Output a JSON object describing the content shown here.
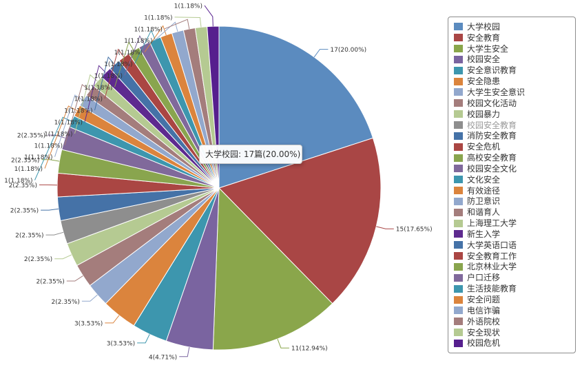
{
  "chart_data": {
    "type": "pie",
    "categories": [
      "大学校园",
      "安全教育",
      "大学生安全",
      "校园安全",
      "安全意识教育",
      "安全隐患",
      "大学生安全意识",
      "校园文化活动",
      "校园暴力",
      "校园安全教育",
      "消防安全教育",
      "安全危机",
      "高校安全教育",
      "校园安全文化",
      "文化安全",
      "有效途径",
      "防卫意识",
      "和谐育人",
      "上海理工大学",
      "新生入学",
      "大学英语口语",
      "安全教育工作",
      "北京林业大学",
      "户口迁移",
      "生活技能教育",
      "安全问题",
      "电信诈骗",
      "外语院校",
      "安全现状",
      "校园危机"
    ],
    "values": [
      17,
      15,
      11,
      4,
      3,
      3,
      2,
      2,
      2,
      2,
      2,
      2,
      2,
      2,
      1,
      1,
      1,
      1,
      1,
      1,
      1,
      1,
      1,
      1,
      1,
      1,
      1,
      1,
      1,
      1
    ],
    "data_labels": [
      "17(20.00%)",
      "15(17.65%)",
      "11(12.94%)",
      "4(4.71%)",
      "3(3.53%)",
      "3(3.53%)",
      "2(2.35%)",
      "2(2.35%)",
      "2(2.35%)",
      "2(2.35%)",
      "2(2.35%)",
      "2(2.35%)",
      "2(2.35%)",
      "2(2.35%)",
      "1(1.18%)",
      "1(1.18%)",
      "1(1.18%)",
      "1(1.18%)",
      "1(1.18%)",
      "1(1.18%)",
      "1(1.18%)",
      "1(1.18%)",
      "1(1.18%)",
      "1(1.18%)",
      "1(1.18%)",
      "1(1.18%)",
      "1(1.18%)",
      "1(1.18%)",
      "1(1.18%)",
      "1(1.18%)"
    ],
    "colors": [
      "#5b8bbf",
      "#a94645",
      "#8aa64b",
      "#7a64a0",
      "#3d96ae",
      "#db843d",
      "#92a8cd",
      "#a47d7c",
      "#b5ca92",
      "#8e8e8e",
      "#4572a7",
      "#aa4643",
      "#89a54e",
      "#80699b",
      "#3d96ae",
      "#db843d",
      "#92a8cd",
      "#a47d7c",
      "#b5ca92",
      "#5e2a8f",
      "#4572a7",
      "#aa4643",
      "#89a54e",
      "#80699b",
      "#3d96ae",
      "#db843d",
      "#92a8cd",
      "#a47d7c",
      "#b5ca92",
      "#561f8e"
    ],
    "muted_legend": [
      "校园安全教育"
    ],
    "legend_position": "right",
    "tooltip": "大学校园: 17篇(20.00%)"
  }
}
